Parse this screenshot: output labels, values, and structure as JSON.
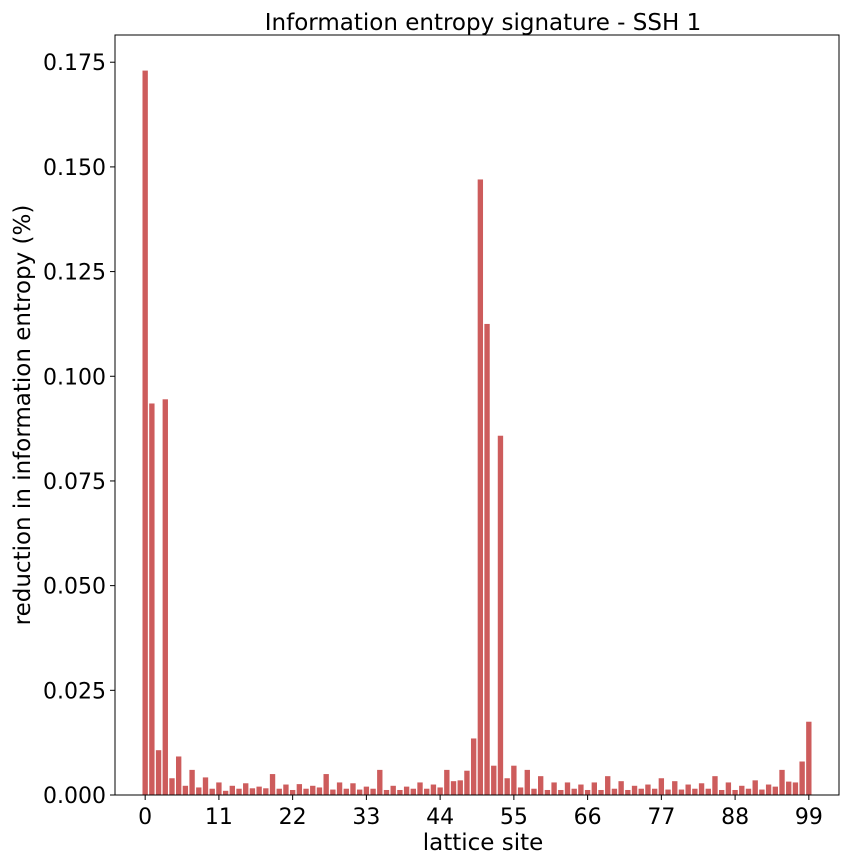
{
  "chart_data": {
    "type": "bar",
    "title": "Information entropy signature - SSH 1",
    "xlabel": "lattice site",
    "ylabel": "reduction in information entropy (%)",
    "bar_color": "#cd5c5c",
    "xlim": [
      -4.5,
      103.5
    ],
    "ylim": [
      0,
      0.1815
    ],
    "xticks": [
      0,
      11,
      22,
      33,
      44,
      55,
      66,
      77,
      88,
      99
    ],
    "yticks": [
      "0.000",
      "0.025",
      "0.050",
      "0.075",
      "0.100",
      "0.125",
      "0.150",
      "0.175"
    ],
    "grid": false,
    "legend": "none",
    "categories": [
      0,
      1,
      2,
      3,
      4,
      5,
      6,
      7,
      8,
      9,
      10,
      11,
      12,
      13,
      14,
      15,
      16,
      17,
      18,
      19,
      20,
      21,
      22,
      23,
      24,
      25,
      26,
      27,
      28,
      29,
      30,
      31,
      32,
      33,
      34,
      35,
      36,
      37,
      38,
      39,
      40,
      41,
      42,
      43,
      44,
      45,
      46,
      47,
      48,
      49,
      50,
      51,
      52,
      53,
      54,
      55,
      56,
      57,
      58,
      59,
      60,
      61,
      62,
      63,
      64,
      65,
      66,
      67,
      68,
      69,
      70,
      71,
      72,
      73,
      74,
      75,
      76,
      77,
      78,
      79,
      80,
      81,
      82,
      83,
      84,
      85,
      86,
      87,
      88,
      89,
      90,
      91,
      92,
      93,
      94,
      95,
      96,
      97,
      98,
      99
    ],
    "values": [
      0.173,
      0.0935,
      0.0107,
      0.0945,
      0.004,
      0.0092,
      0.0022,
      0.006,
      0.0018,
      0.0042,
      0.0015,
      0.003,
      0.001,
      0.0022,
      0.0015,
      0.0028,
      0.0016,
      0.002,
      0.0016,
      0.005,
      0.0015,
      0.0025,
      0.0012,
      0.0026,
      0.0015,
      0.0022,
      0.0018,
      0.005,
      0.0013,
      0.003,
      0.0015,
      0.0028,
      0.0013,
      0.002,
      0.0015,
      0.006,
      0.0012,
      0.0022,
      0.0012,
      0.002,
      0.0015,
      0.003,
      0.0015,
      0.0025,
      0.0018,
      0.006,
      0.0033,
      0.0035,
      0.0058,
      0.0135,
      0.147,
      0.1125,
      0.007,
      0.0858,
      0.004,
      0.007,
      0.0018,
      0.006,
      0.0015,
      0.0045,
      0.0012,
      0.003,
      0.0012,
      0.003,
      0.0015,
      0.0025,
      0.0012,
      0.003,
      0.0012,
      0.0045,
      0.0015,
      0.0033,
      0.0012,
      0.0022,
      0.0015,
      0.0025,
      0.0015,
      0.004,
      0.0013,
      0.0033,
      0.0013,
      0.0025,
      0.0015,
      0.0028,
      0.0015,
      0.0045,
      0.0012,
      0.003,
      0.0012,
      0.0022,
      0.0015,
      0.0035,
      0.0013,
      0.0025,
      0.002,
      0.006,
      0.0032,
      0.003,
      0.008,
      0.0175
    ]
  }
}
